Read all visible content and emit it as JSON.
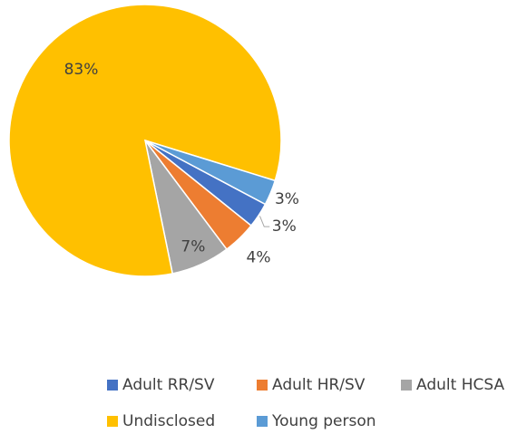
{
  "chart_data": {
    "type": "pie",
    "categories": [
      "Adult RR/SV",
      "Adult HR/SV",
      "Adult HCSA",
      "Undisclosed",
      "Young person"
    ],
    "values": [
      3,
      4,
      7,
      83,
      3
    ],
    "value_labels": [
      "3%",
      "4%",
      "7%",
      "83%",
      "3%"
    ],
    "colors": [
      "#4472c4",
      "#ed7d31",
      "#a5a5a5",
      "#ffc000",
      "#5b9bd5"
    ],
    "legend": "bottom"
  }
}
